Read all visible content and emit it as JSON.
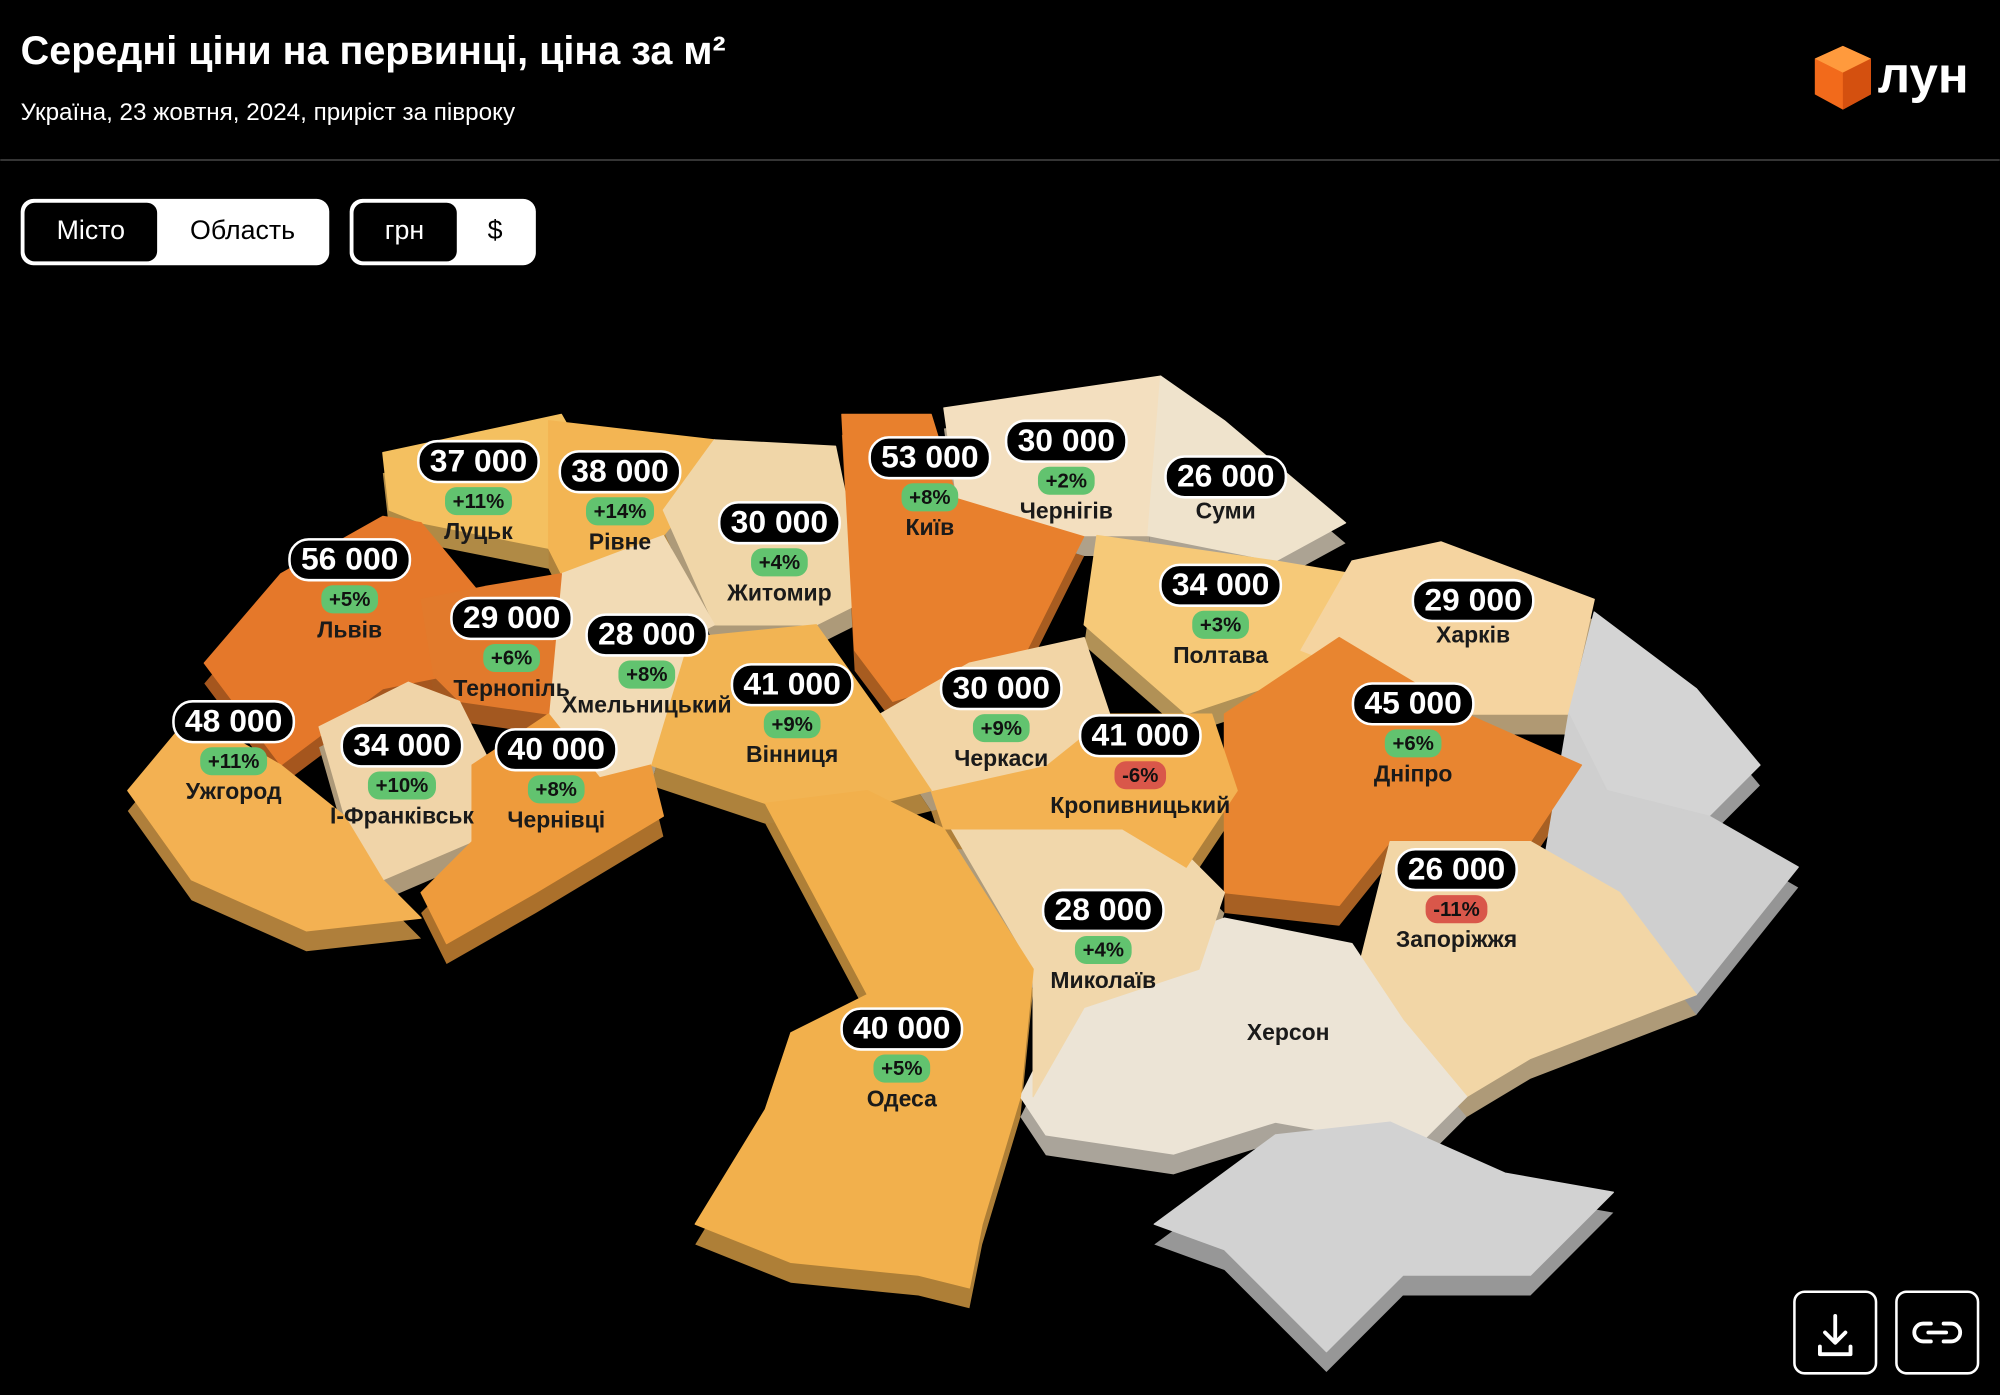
{
  "header": {
    "title": "Середні ціни на первинці, ціна за м²",
    "subtitle": "Україна, 23 жовтня, 2024, приріст за півроку",
    "logo": "лун"
  },
  "controls": {
    "area_toggle": [
      "Місто",
      "Область"
    ],
    "currency_toggle": [
      "грн",
      "$"
    ]
  },
  "regions": [
    {
      "name": "Луцьк",
      "price": "37 000",
      "change": "+11%"
    },
    {
      "name": "Рівне",
      "price": "38 000",
      "change": "+14%"
    },
    {
      "name": "Львів",
      "price": "56 000",
      "change": "+5%"
    },
    {
      "name": "Житомир",
      "price": "30 000",
      "change": "+4%"
    },
    {
      "name": "Київ",
      "price": "53 000",
      "change": "+8%"
    },
    {
      "name": "Чернігів",
      "price": "30 000",
      "change": "+2%"
    },
    {
      "name": "Суми",
      "price": "26 000"
    },
    {
      "name": "Тернопіль",
      "price": "29 000",
      "change": "+6%"
    },
    {
      "name": "Хмельницький",
      "price": "28 000",
      "change": "+8%"
    },
    {
      "name": "Полтава",
      "price": "34 000",
      "change": "+3%"
    },
    {
      "name": "Харків",
      "price": "29 000"
    },
    {
      "name": "Ужгород",
      "price": "48 000",
      "change": "+11%"
    },
    {
      "name": "І-Франківськ",
      "price": "34 000",
      "change": "+10%"
    },
    {
      "name": "Чернівці",
      "price": "40 000",
      "change": "+8%"
    },
    {
      "name": "Вінниця",
      "price": "41 000",
      "change": "+9%"
    },
    {
      "name": "Черкаси",
      "price": "30 000",
      "change": "+9%"
    },
    {
      "name": "Кропивницький",
      "price": "41 000",
      "change": "-6%"
    },
    {
      "name": "Дніпро",
      "price": "45 000",
      "change": "+6%"
    },
    {
      "name": "Запоріжжя",
      "price": "26 000",
      "change": "-11%"
    },
    {
      "name": "Миколаїв",
      "price": "28 000",
      "change": "+4%"
    },
    {
      "name": "Одеса",
      "price": "40 000",
      "change": "+5%"
    },
    {
      "name": "Херсон"
    }
  ]
}
